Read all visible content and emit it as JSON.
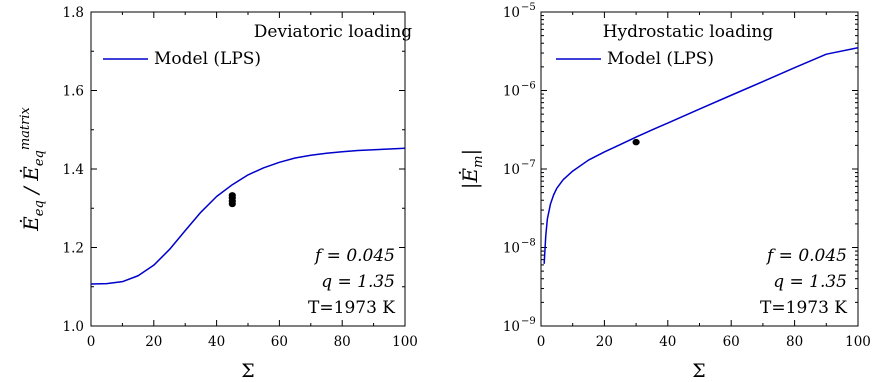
{
  "chart_data": [
    {
      "type": "line",
      "legend_title": "Deviatoric loading",
      "legend_placement": "top-right",
      "xlabel": "Σ",
      "ylabel": "Ė_eq / Ė_eq^matrix",
      "xlim": [
        0,
        100
      ],
      "ylim": [
        1.0,
        1.8
      ],
      "yscale": "linear",
      "grid": false,
      "x_ticks": [
        "0",
        "20",
        "40",
        "60",
        "80",
        "100"
      ],
      "y_ticks": [
        "1.0",
        "1.2",
        "1.4",
        "1.6",
        "1.8"
      ],
      "series": [
        {
          "name": "Model (LPS)",
          "color": "#0000cc",
          "x": [
            0,
            5,
            10,
            15,
            20,
            25,
            30,
            35,
            40,
            45,
            50,
            55,
            60,
            65,
            70,
            75,
            80,
            85,
            90,
            95,
            100
          ],
          "y": [
            1.107,
            1.108,
            1.113,
            1.128,
            1.155,
            1.195,
            1.243,
            1.29,
            1.33,
            1.36,
            1.385,
            1.403,
            1.417,
            1.428,
            1.435,
            1.44,
            1.444,
            1.447,
            1.449,
            1.451,
            1.453
          ]
        },
        {
          "name": "points",
          "type": "scatter",
          "color": "#000000",
          "x": [
            45,
            45,
            45,
            45
          ],
          "y": [
            1.333,
            1.326,
            1.318,
            1.311
          ]
        }
      ],
      "annotations": [
        "f = 0.045",
        "q = 1.35",
        "T=1973 K"
      ]
    },
    {
      "type": "line",
      "legend_title": "Hydrostatic loading",
      "legend_placement": "top-right",
      "xlabel": "Σ",
      "ylabel": "|Ė_m|",
      "xlim": [
        0,
        100
      ],
      "ylim": [
        1e-09,
        1e-05
      ],
      "yscale": "log",
      "grid": false,
      "x_ticks": [
        "0",
        "20",
        "40",
        "60",
        "80",
        "100"
      ],
      "y_ticks": [
        "10",
        "10",
        "10",
        "10",
        "10"
      ],
      "y_tick_exponents": [
        "−9",
        "−8",
        "−7",
        "−6",
        "−5"
      ],
      "series": [
        {
          "name": "Model (LPS)",
          "color": "#0000cc",
          "x": [
            1,
            1.5,
            2,
            3,
            4,
            5,
            7,
            10,
            15,
            20,
            25,
            30,
            35,
            40,
            50,
            60,
            70,
            80,
            90,
            100
          ],
          "y": [
            6.2e-09,
            1.4e-08,
            2.3e-08,
            3.6e-08,
            4.7e-08,
            5.7e-08,
            7.3e-08,
            9.4e-08,
            1.3e-07,
            1.65e-07,
            2.05e-07,
            2.55e-07,
            3.15e-07,
            3.85e-07,
            5.8e-07,
            8.7e-07,
            1.3e-06,
            1.95e-06,
            2.9e-06,
            3.5e-06
          ]
        },
        {
          "name": "points",
          "type": "scatter",
          "color": "#000000",
          "x": [
            30
          ],
          "y": [
            2.2e-07
          ]
        }
      ],
      "annotations": [
        "f = 0.045",
        "q = 1.35",
        "T=1973 K"
      ]
    }
  ]
}
